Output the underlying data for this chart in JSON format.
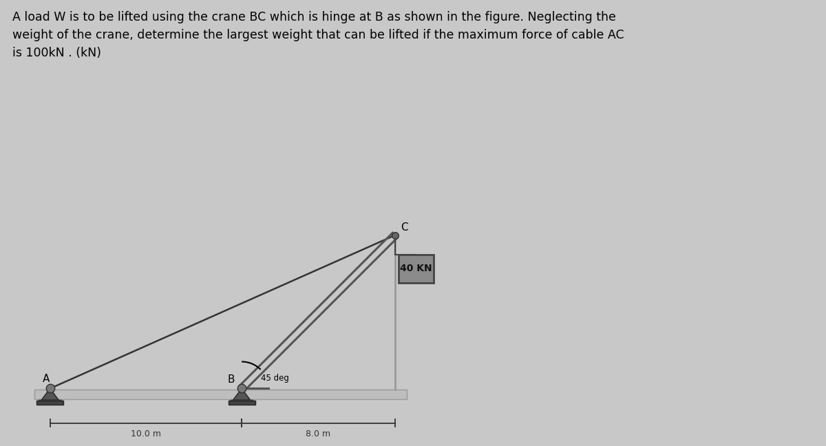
{
  "title_line1": "A load W is to be lifted using the crane BC which is hinge at B as shown in the figure. Neglecting the",
  "title_line2": "weight of the crane, determine the largest weight that can be lifted if the maximum force of cable AC",
  "title_line3": "is 100kN . (kN)",
  "bg_color": "#c8c8c8",
  "fig_bg_color": "#c8c8c8",
  "A": [
    0.0,
    0.0
  ],
  "B": [
    10.0,
    0.0
  ],
  "C": [
    18.0,
    8.0
  ],
  "dist_AB": "10.0 m",
  "dist_BC_horiz": "8.0 m",
  "angle_label": "45 deg",
  "load_label": "40 KN",
  "point_A_label": "A",
  "point_B_label": "B",
  "point_C_label": "C",
  "crane_color": "#555555",
  "cable_color": "#333333",
  "wall_color": "#999999",
  "ground_color": "#b8b8b8",
  "load_box_facecolor": "#888888",
  "load_box_edgecolor": "#444444",
  "load_text_color": "#111111",
  "support_color": "#444444",
  "dim_color": "#333333"
}
